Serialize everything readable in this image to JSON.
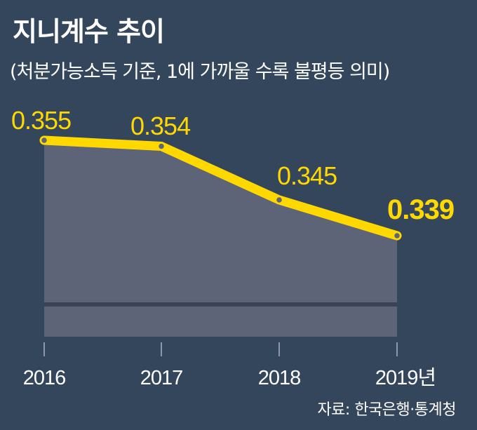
{
  "header": {
    "title": "지니계수 추이",
    "subtitle": "(처분가능소득 기준, 1에 가까울 수록 불평등 의미)"
  },
  "footer": {
    "source": "자료: 한국은행·통계청"
  },
  "colors": {
    "background": "#34465c",
    "area_fill": "#5d6478",
    "line": "#ffd800",
    "baseline": "#3a4356",
    "text": "#ffffff"
  },
  "chart_data": {
    "type": "area",
    "categories": [
      "2016",
      "2017",
      "2018",
      "2019년"
    ],
    "series": [
      {
        "values": [
          0.355,
          0.354,
          0.345,
          0.339
        ],
        "labels": [
          "0.355",
          "0.354",
          "0.345",
          "0.339"
        ]
      }
    ],
    "title": "지니계수 추이",
    "subtitle": "(처분가능소득 기준, 1에 가까울 수록 불평등 의미)",
    "highlight_last": true,
    "grid": false
  }
}
